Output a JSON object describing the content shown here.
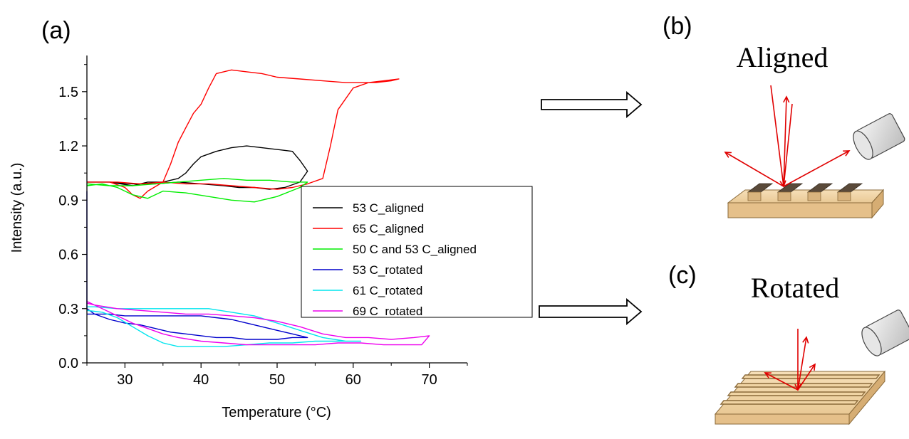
{
  "labels": {
    "panel_a": "(a)",
    "panel_b": "(b)",
    "panel_c": "(c)"
  },
  "captions": {
    "aligned": "Aligned",
    "rotated": "Rotated"
  },
  "chart_data": {
    "type": "line",
    "xlabel": "Temperature (°C)",
    "ylabel": "Intensity (a.u.)",
    "xlim": [
      25,
      75
    ],
    "ylim": [
      0.0,
      1.7
    ],
    "xticks": [
      30,
      40,
      50,
      60,
      70
    ],
    "yticks": [
      0.0,
      0.3,
      0.6,
      0.9,
      1.2,
      1.5
    ],
    "ytick_labels": [
      "0.0",
      "0.3",
      "0.6",
      "0.9",
      "1.2",
      "1.5"
    ],
    "grid": false,
    "legend_position": "center-right",
    "series": [
      {
        "name": "53 C_aligned",
        "color": "#000000",
        "x": [
          25,
          28,
          31,
          33,
          35,
          37,
          38,
          39,
          40,
          42,
          44,
          46,
          48,
          50,
          52,
          53,
          54,
          53,
          51,
          49,
          47,
          45,
          43,
          40,
          37,
          34,
          31,
          28,
          25
        ],
        "y": [
          1.0,
          1.0,
          0.98,
          1.0,
          1.0,
          1.02,
          1.05,
          1.1,
          1.14,
          1.17,
          1.19,
          1.2,
          1.19,
          1.18,
          1.17,
          1.12,
          1.06,
          1.0,
          0.97,
          0.96,
          0.97,
          0.97,
          0.98,
          0.99,
          1.0,
          0.99,
          0.99,
          1.0,
          1.0
        ]
      },
      {
        "name": "65 C_aligned",
        "color": "#ff0000",
        "x": [
          25,
          28,
          30,
          31,
          32,
          33,
          35,
          36,
          37,
          38,
          39,
          40,
          41,
          42,
          44,
          46,
          48,
          50,
          53,
          56,
          59,
          61,
          63,
          65,
          66,
          64,
          62,
          60,
          58,
          57,
          56,
          54,
          52,
          50,
          47,
          44,
          41,
          38,
          35,
          32,
          29,
          26,
          25
        ],
        "y": [
          1.0,
          1.0,
          0.97,
          0.93,
          0.91,
          0.95,
          1.0,
          1.1,
          1.22,
          1.3,
          1.38,
          1.43,
          1.52,
          1.6,
          1.62,
          1.61,
          1.6,
          1.58,
          1.57,
          1.56,
          1.55,
          1.55,
          1.55,
          1.56,
          1.57,
          1.56,
          1.55,
          1.52,
          1.4,
          1.2,
          1.02,
          0.99,
          0.97,
          0.96,
          0.97,
          0.98,
          0.99,
          0.99,
          1.0,
          0.99,
          1.0,
          1.0,
          1.0
        ]
      },
      {
        "name": "50 C and 53 C_aligned",
        "color": "#00ee00",
        "x": [
          25,
          27,
          29,
          31,
          33,
          35,
          38,
          41,
          44,
          47,
          50,
          53,
          54,
          52,
          49,
          46,
          43,
          40,
          37,
          34,
          31,
          28,
          25
        ],
        "y": [
          0.98,
          0.99,
          0.97,
          0.93,
          0.91,
          0.95,
          0.94,
          0.92,
          0.9,
          0.89,
          0.92,
          0.97,
          1.0,
          1.0,
          1.01,
          1.01,
          1.02,
          1.01,
          1.0,
          0.99,
          0.98,
          0.98,
          0.99
        ]
      },
      {
        "name": "53 C_rotated",
        "color": "#0000cc",
        "x": [
          25,
          25,
          26,
          28,
          30,
          32,
          34,
          36,
          38,
          40,
          42,
          44,
          46,
          48,
          50,
          52,
          54,
          52,
          50,
          48,
          46,
          44,
          42,
          40,
          38,
          36,
          34,
          32,
          30,
          28,
          26,
          25
        ],
        "y": [
          0.95,
          0.3,
          0.27,
          0.24,
          0.22,
          0.21,
          0.19,
          0.17,
          0.16,
          0.15,
          0.14,
          0.14,
          0.13,
          0.13,
          0.13,
          0.14,
          0.14,
          0.16,
          0.18,
          0.2,
          0.22,
          0.24,
          0.25,
          0.26,
          0.26,
          0.26,
          0.26,
          0.26,
          0.26,
          0.27,
          0.27,
          0.27
        ]
      },
      {
        "name": "61 C_rotated",
        "color": "#00e5ee",
        "x": [
          25,
          27,
          29,
          31,
          33,
          35,
          37,
          39,
          41,
          43,
          46,
          49,
          52,
          55,
          58,
          61,
          59,
          56,
          53,
          50,
          47,
          44,
          41,
          38,
          35,
          32,
          29,
          26,
          25
        ],
        "y": [
          0.29,
          0.28,
          0.25,
          0.2,
          0.15,
          0.11,
          0.09,
          0.09,
          0.09,
          0.09,
          0.1,
          0.11,
          0.11,
          0.12,
          0.12,
          0.12,
          0.12,
          0.14,
          0.18,
          0.22,
          0.26,
          0.28,
          0.3,
          0.3,
          0.3,
          0.3,
          0.3,
          0.31,
          0.31
        ]
      },
      {
        "name": "69 C_rotated",
        "color": "#ee00ee",
        "x": [
          25,
          27,
          29,
          31,
          33,
          35,
          37,
          40,
          43,
          46,
          49,
          52,
          55,
          58,
          61,
          64,
          67,
          69,
          70,
          68,
          65,
          62,
          59,
          56,
          53,
          50,
          47,
          44,
          41,
          38,
          35,
          32,
          29,
          26,
          25
        ],
        "y": [
          0.34,
          0.3,
          0.26,
          0.22,
          0.19,
          0.16,
          0.14,
          0.12,
          0.11,
          0.1,
          0.1,
          0.1,
          0.1,
          0.11,
          0.11,
          0.1,
          0.1,
          0.1,
          0.15,
          0.14,
          0.13,
          0.14,
          0.14,
          0.16,
          0.2,
          0.23,
          0.25,
          0.26,
          0.27,
          0.27,
          0.28,
          0.29,
          0.3,
          0.32,
          0.33
        ]
      }
    ]
  }
}
